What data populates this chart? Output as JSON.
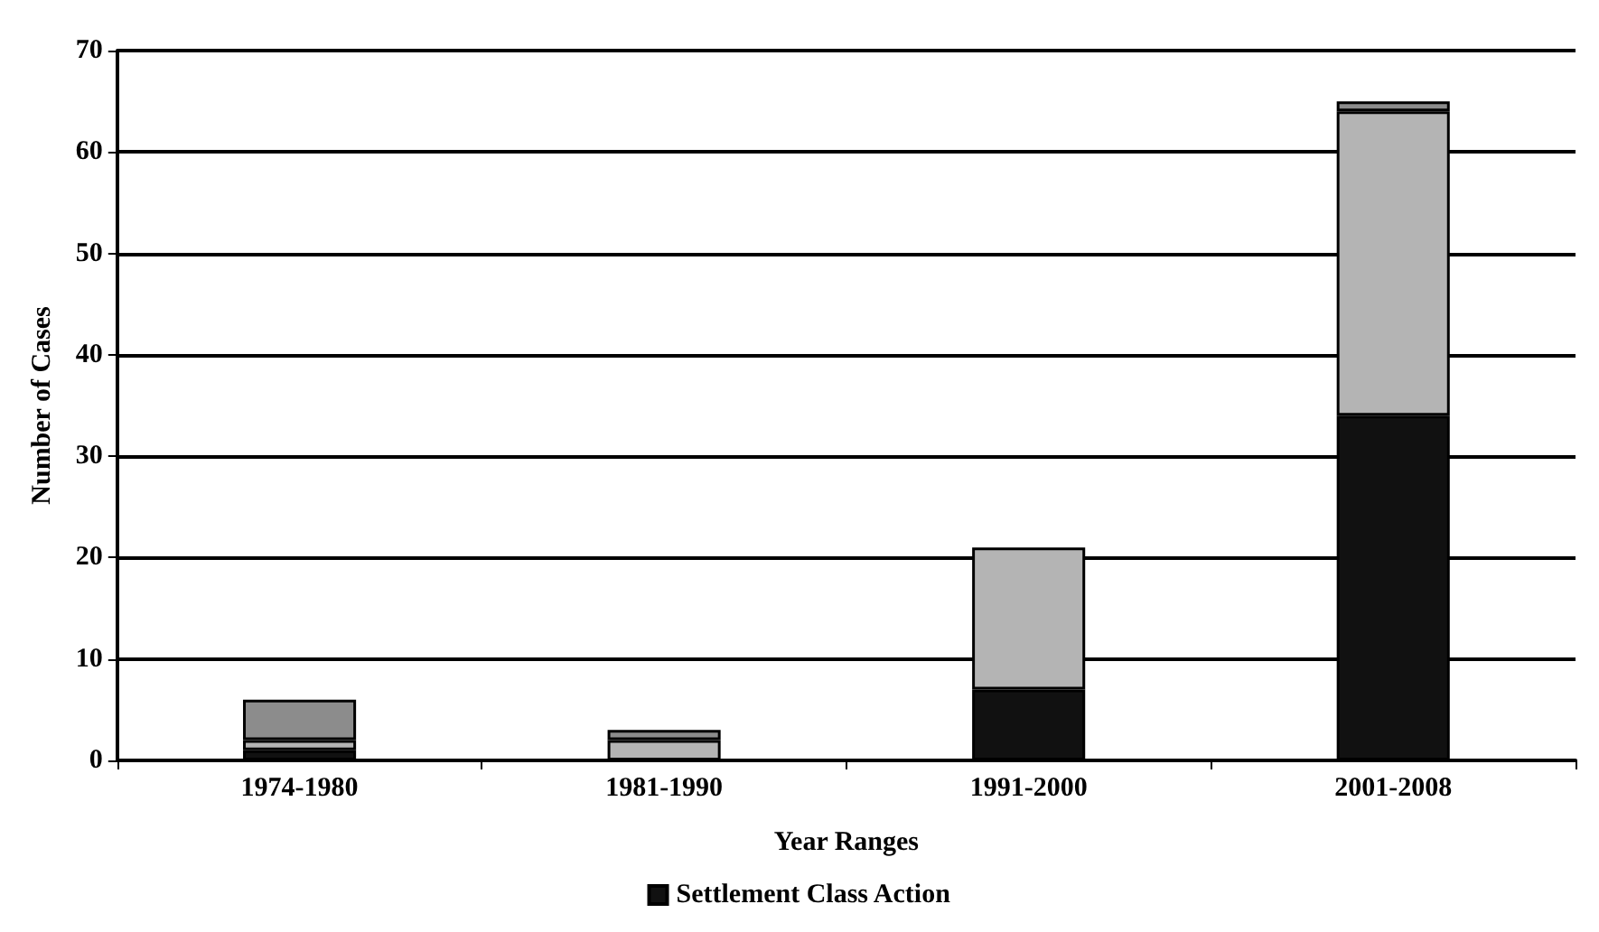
{
  "chart_data": {
    "type": "bar",
    "stacked": true,
    "xlabel": "Year Ranges",
    "ylabel": "Number of Cases",
    "categories": [
      "1974-1980",
      "1981-1990",
      "1991-2000",
      "2001-2008"
    ],
    "series": [
      {
        "name": "Settlement Class Action",
        "color": "#111111",
        "values": [
          1,
          0,
          7,
          34
        ]
      },
      {
        "color": "#b4b4b4",
        "values": [
          1,
          2,
          14,
          30
        ]
      },
      {
        "color": "#8c8c8c",
        "values": [
          4,
          1,
          0,
          1
        ]
      }
    ],
    "ylim": [
      0,
      70
    ],
    "yticks": [
      0,
      10,
      20,
      30,
      40,
      50,
      60,
      70
    ],
    "grid": "y",
    "legend": "bottom"
  }
}
